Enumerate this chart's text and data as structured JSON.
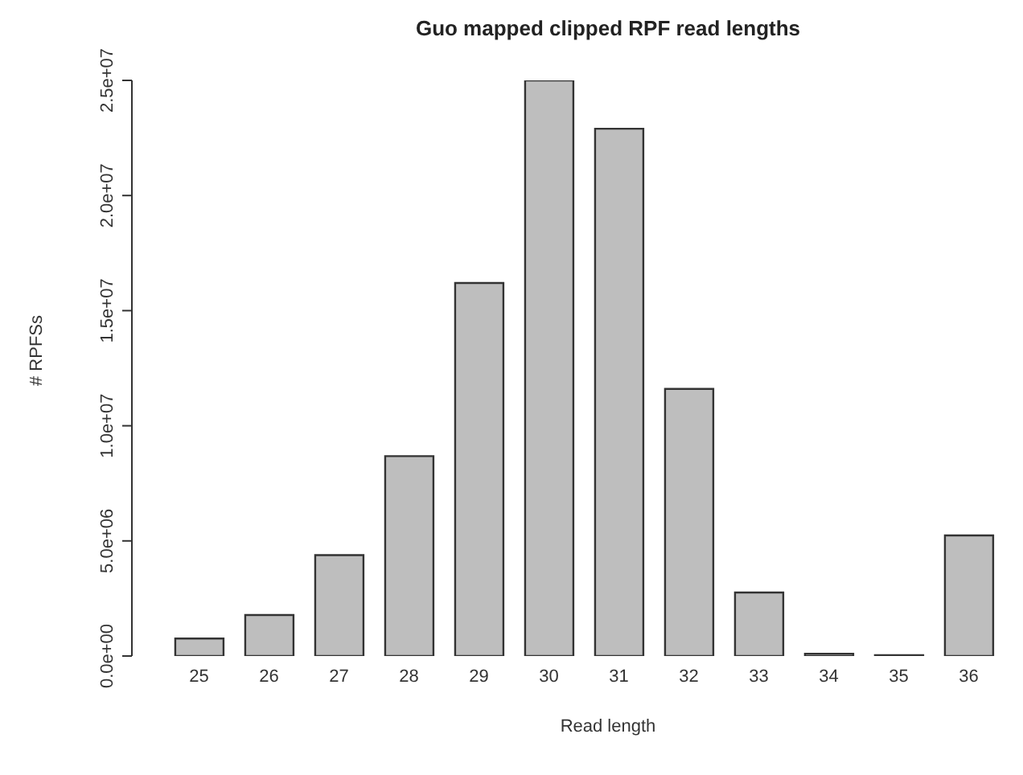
{
  "chart_data": {
    "type": "bar",
    "title": "Guo mapped clipped RPF read lengths",
    "xlabel": "Read length",
    "ylabel": "# RPFSs",
    "categories": [
      "25",
      "26",
      "27",
      "28",
      "29",
      "30",
      "31",
      "32",
      "33",
      "34",
      "35",
      "36"
    ],
    "values": [
      760000,
      1780000,
      4380000,
      8680000,
      16200000,
      25000000,
      22900000,
      11600000,
      2760000,
      100000,
      40000,
      5240000
    ],
    "color": "#bebebe",
    "ylim": [
      0,
      25000000
    ],
    "yticks": [
      {
        "value": 0,
        "label": "0.0e+00"
      },
      {
        "value": 5000000,
        "label": "5.0e+06"
      },
      {
        "value": 10000000,
        "label": "1.0e+07"
      },
      {
        "value": 15000000,
        "label": "1.5e+07"
      },
      {
        "value": 20000000,
        "label": "2.0e+07"
      },
      {
        "value": 25000000,
        "label": "2.5e+07"
      }
    ],
    "grid": false,
    "legend": false
  }
}
